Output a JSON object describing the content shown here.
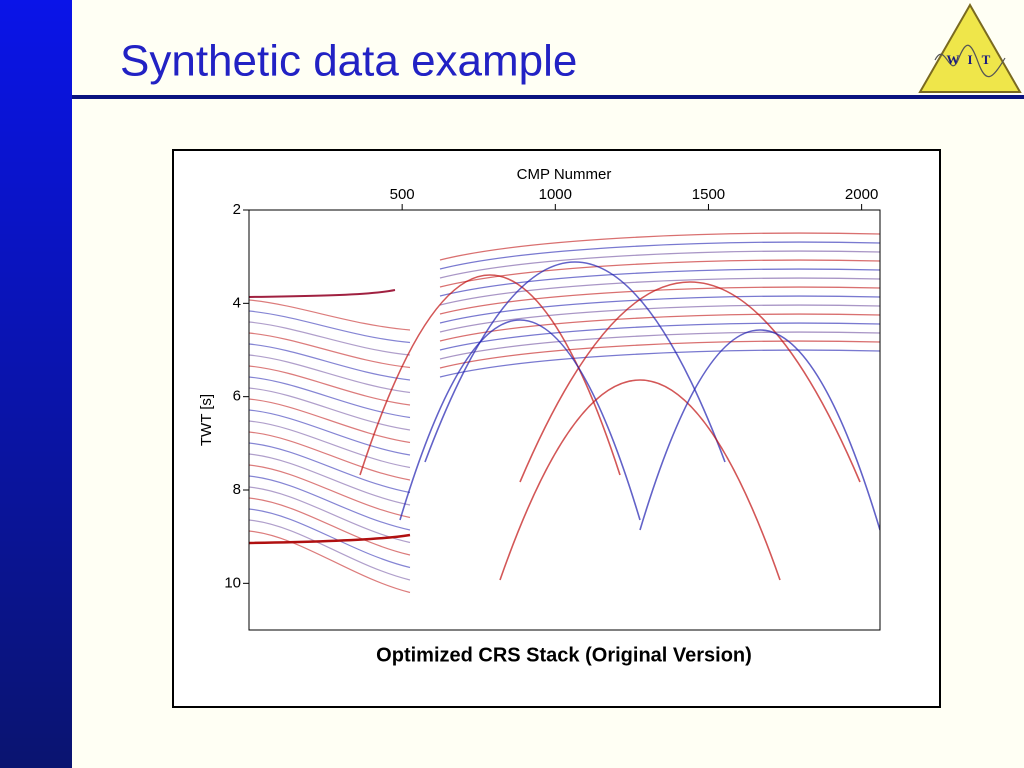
{
  "slide": {
    "title": "Synthetic data example",
    "logo": [
      "W",
      "I",
      "T"
    ]
  },
  "figure": {
    "type": "image",
    "xlabel": "CMP Nummer",
    "ylabel": "TWT [s]",
    "xlim": [
      0,
      2060
    ],
    "xticks": [
      500,
      1000,
      1500,
      2000
    ],
    "ylim": [
      11,
      2
    ],
    "yticks": [
      2,
      4,
      6,
      8,
      10
    ],
    "caption": "Optimized CRS Stack (Original Version)"
  }
}
